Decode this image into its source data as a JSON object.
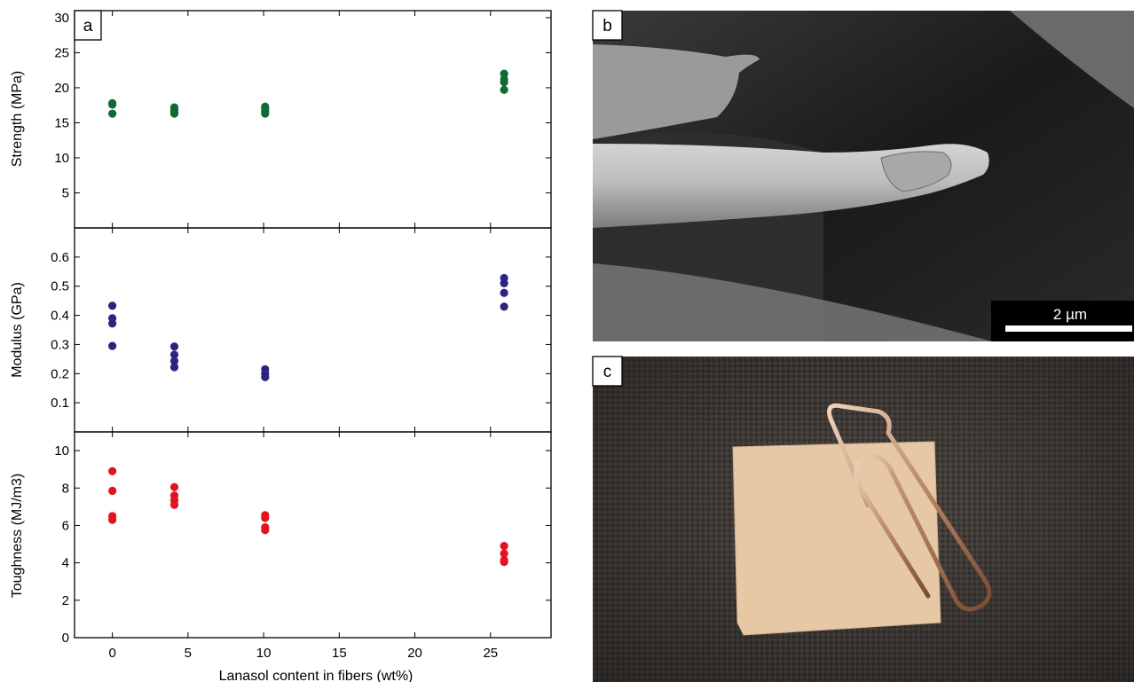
{
  "panel_labels": {
    "a": "a",
    "b": "b",
    "c": "c"
  },
  "scale_bar_label": "2 µm",
  "photo_b": {
    "subject": "SEM image of a fiber tip",
    "colors": {
      "bg_dark": "#141414",
      "fiber": "#b9b9b9"
    }
  },
  "photo_c": {
    "subject": "Paper square with a paperclip on dark textured fabric",
    "colors": {
      "fabric": "#4a4440",
      "paper": "#e6c8a5",
      "clip": "#b8876a"
    }
  },
  "chart_data": [
    {
      "type": "scatter",
      "ylabel": "Strength (MPa)",
      "ylim": [
        0,
        31
      ],
      "yticks": [
        5,
        10,
        15,
        20,
        25,
        30
      ],
      "xlim": [
        -2.5,
        29
      ],
      "color": "#0e6b35",
      "points": [
        {
          "x": 0,
          "y": 16.3
        },
        {
          "x": 0,
          "y": 17.6
        },
        {
          "x": 0,
          "y": 17.8
        },
        {
          "x": 4.1,
          "y": 16.3
        },
        {
          "x": 4.1,
          "y": 16.6
        },
        {
          "x": 4.1,
          "y": 16.9
        },
        {
          "x": 4.1,
          "y": 17.2
        },
        {
          "x": 10.1,
          "y": 16.3
        },
        {
          "x": 10.1,
          "y": 16.7
        },
        {
          "x": 10.1,
          "y": 17.0
        },
        {
          "x": 10.1,
          "y": 17.3
        },
        {
          "x": 25.9,
          "y": 19.7
        },
        {
          "x": 25.9,
          "y": 20.8
        },
        {
          "x": 25.9,
          "y": 21.2
        },
        {
          "x": 25.9,
          "y": 22.0
        }
      ]
    },
    {
      "type": "scatter",
      "ylabel": "Modulus (GPa)",
      "ylim": [
        0,
        0.7
      ],
      "yticks": [
        0.1,
        0.2,
        0.3,
        0.4,
        0.5,
        0.6
      ],
      "xlim": [
        -2.5,
        29
      ],
      "color": "#2b2483",
      "points": [
        {
          "x": 0,
          "y": 0.295
        },
        {
          "x": 0,
          "y": 0.372
        },
        {
          "x": 0,
          "y": 0.39
        },
        {
          "x": 0,
          "y": 0.433
        },
        {
          "x": 4.1,
          "y": 0.222
        },
        {
          "x": 4.1,
          "y": 0.243
        },
        {
          "x": 4.1,
          "y": 0.265
        },
        {
          "x": 4.1,
          "y": 0.293
        },
        {
          "x": 10.1,
          "y": 0.188
        },
        {
          "x": 10.1,
          "y": 0.2
        },
        {
          "x": 10.1,
          "y": 0.215
        },
        {
          "x": 25.9,
          "y": 0.43
        },
        {
          "x": 25.9,
          "y": 0.477
        },
        {
          "x": 25.9,
          "y": 0.51
        },
        {
          "x": 25.9,
          "y": 0.528
        }
      ]
    },
    {
      "type": "scatter",
      "xlabel": "Lanasol content in fibers (wt%)",
      "ylabel": "Toughness (MJ/m3)",
      "ylim": [
        0,
        11
      ],
      "yticks": [
        0,
        2,
        4,
        6,
        8,
        10
      ],
      "xlim": [
        -2.5,
        29
      ],
      "xticks": [
        0,
        5,
        10,
        15,
        20,
        25
      ],
      "color": "#e2141e",
      "points": [
        {
          "x": 0,
          "y": 6.3
        },
        {
          "x": 0,
          "y": 6.5
        },
        {
          "x": 0,
          "y": 7.85
        },
        {
          "x": 0,
          "y": 8.9
        },
        {
          "x": 4.1,
          "y": 7.1
        },
        {
          "x": 4.1,
          "y": 7.35
        },
        {
          "x": 4.1,
          "y": 7.6
        },
        {
          "x": 4.1,
          "y": 8.05
        },
        {
          "x": 10.1,
          "y": 5.75
        },
        {
          "x": 10.1,
          "y": 5.9
        },
        {
          "x": 10.1,
          "y": 6.4
        },
        {
          "x": 10.1,
          "y": 6.55
        },
        {
          "x": 25.9,
          "y": 4.05
        },
        {
          "x": 25.9,
          "y": 4.15
        },
        {
          "x": 25.9,
          "y": 4.5
        },
        {
          "x": 25.9,
          "y": 4.9
        }
      ]
    }
  ]
}
